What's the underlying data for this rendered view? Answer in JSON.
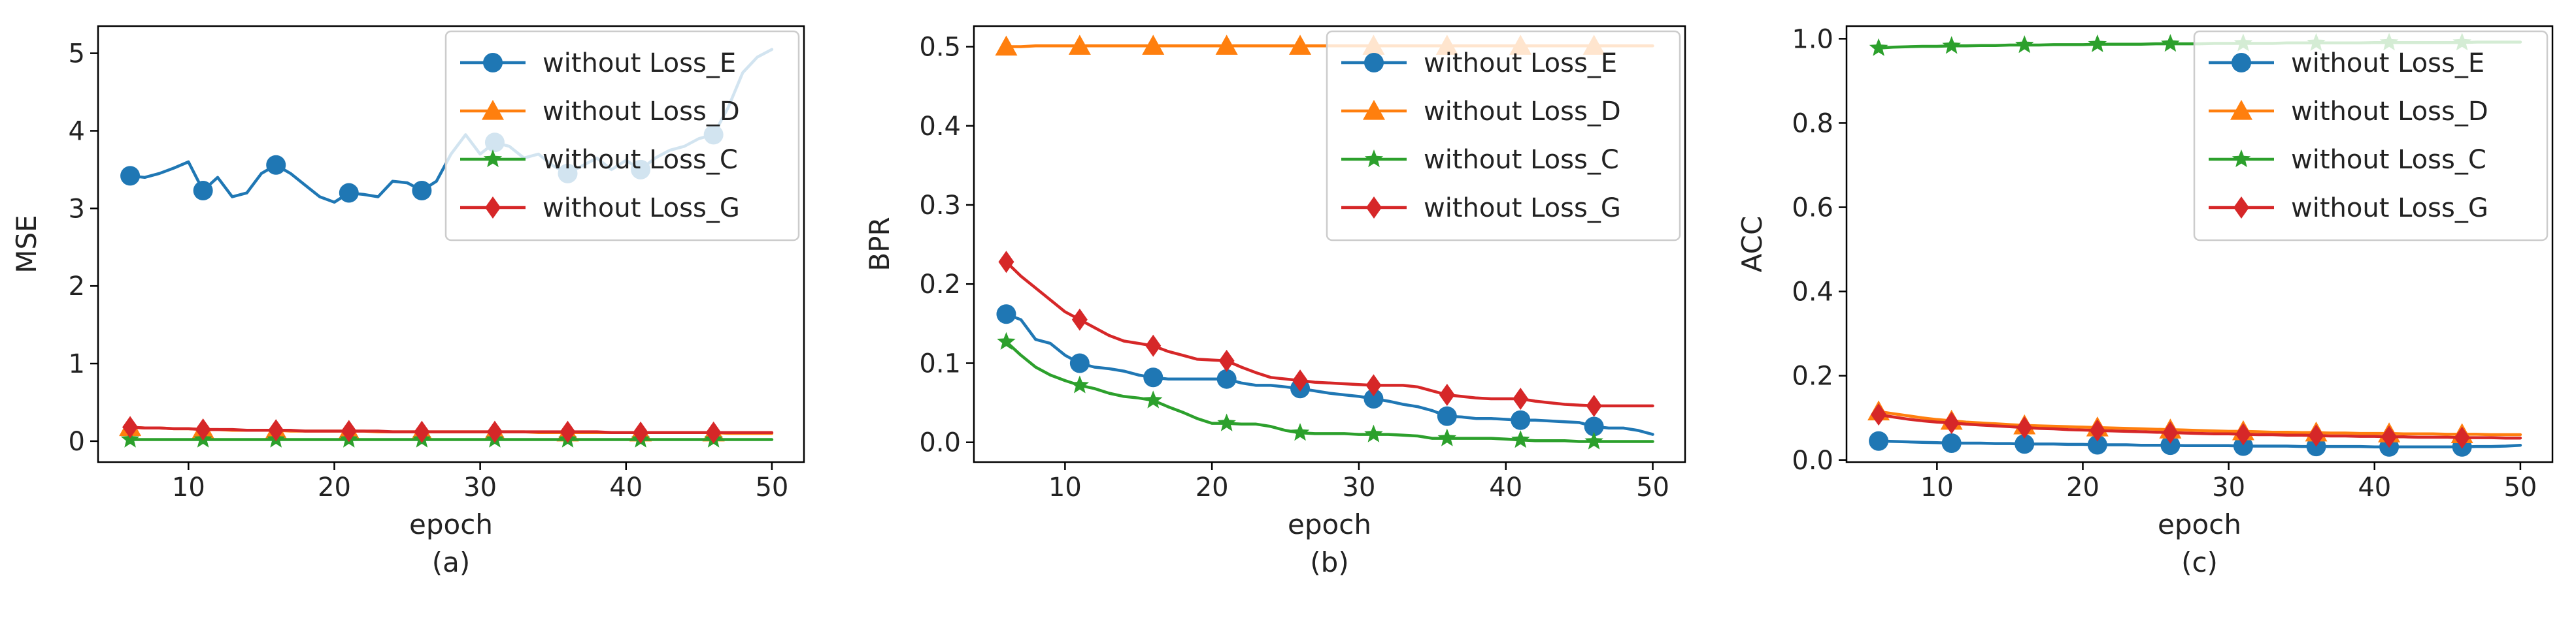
{
  "chart_data": [
    {
      "type": "line",
      "caption": "(a)",
      "xlabel": "epoch",
      "ylabel": "MSE",
      "xlim": [
        3.8,
        52.2
      ],
      "ylim": [
        -0.27,
        5.35
      ],
      "xticks": [
        10,
        20,
        30,
        40,
        50
      ],
      "yticks": [
        0,
        1,
        2,
        3,
        4,
        5
      ],
      "ytick_labels": [
        "0",
        "1",
        "2",
        "3",
        "4",
        "5"
      ],
      "legend_position": "top-right",
      "x": [
        6,
        7,
        8,
        9,
        10,
        11,
        12,
        13,
        14,
        15,
        16,
        17,
        18,
        19,
        20,
        21,
        22,
        23,
        24,
        25,
        26,
        27,
        28,
        29,
        30,
        31,
        32,
        33,
        34,
        35,
        36,
        37,
        38,
        39,
        40,
        41,
        42,
        43,
        44,
        45,
        46,
        47,
        48,
        49,
        50
      ],
      "marker_every": 5,
      "series": [
        {
          "name": "without Loss_E",
          "color": "#1f77b4",
          "marker": "circle",
          "values": [
            3.42,
            3.4,
            3.45,
            3.52,
            3.6,
            3.23,
            3.4,
            3.15,
            3.2,
            3.45,
            3.56,
            3.45,
            3.3,
            3.15,
            3.08,
            3.2,
            3.18,
            3.15,
            3.35,
            3.33,
            3.23,
            3.35,
            3.7,
            3.95,
            3.7,
            3.85,
            3.8,
            3.65,
            3.7,
            3.55,
            3.45,
            3.55,
            3.65,
            3.5,
            3.62,
            3.5,
            3.65,
            3.75,
            3.8,
            3.9,
            3.95,
            4.3,
            4.75,
            4.95,
            5.05
          ]
        },
        {
          "name": "without Loss_D",
          "color": "#ff7f0e",
          "marker": "triangle",
          "values": [
            0.18,
            0.17,
            0.17,
            0.16,
            0.16,
            0.15,
            0.15,
            0.14,
            0.14,
            0.14,
            0.14,
            0.13,
            0.13,
            0.13,
            0.13,
            0.13,
            0.13,
            0.12,
            0.12,
            0.12,
            0.12,
            0.12,
            0.12,
            0.12,
            0.12,
            0.12,
            0.12,
            0.12,
            0.11,
            0.11,
            0.11,
            0.11,
            0.11,
            0.11,
            0.11,
            0.11,
            0.11,
            0.11,
            0.11,
            0.11,
            0.11,
            0.1,
            0.1,
            0.1,
            0.1
          ]
        },
        {
          "name": "without Loss_C",
          "color": "#2ca02c",
          "marker": "star",
          "values": [
            0.02,
            0.02,
            0.02,
            0.02,
            0.02,
            0.02,
            0.02,
            0.02,
            0.02,
            0.02,
            0.02,
            0.02,
            0.02,
            0.02,
            0.02,
            0.02,
            0.02,
            0.02,
            0.02,
            0.02,
            0.02,
            0.02,
            0.02,
            0.02,
            0.02,
            0.02,
            0.02,
            0.02,
            0.02,
            0.02,
            0.02,
            0.02,
            0.02,
            0.02,
            0.02,
            0.02,
            0.02,
            0.02,
            0.02,
            0.02,
            0.02,
            0.02,
            0.02,
            0.02,
            0.02
          ]
        },
        {
          "name": "without Loss_G",
          "color": "#d62728",
          "marker": "diamond",
          "values": [
            0.18,
            0.17,
            0.17,
            0.16,
            0.16,
            0.15,
            0.15,
            0.15,
            0.14,
            0.14,
            0.14,
            0.14,
            0.13,
            0.13,
            0.13,
            0.13,
            0.13,
            0.13,
            0.12,
            0.12,
            0.12,
            0.12,
            0.12,
            0.12,
            0.12,
            0.12,
            0.12,
            0.12,
            0.12,
            0.12,
            0.12,
            0.12,
            0.12,
            0.11,
            0.11,
            0.11,
            0.11,
            0.11,
            0.11,
            0.11,
            0.11,
            0.11,
            0.11,
            0.11,
            0.11
          ]
        }
      ]
    },
    {
      "type": "line",
      "caption": "(b)",
      "xlabel": "epoch",
      "ylabel": "BPR",
      "xlim": [
        3.8,
        52.2
      ],
      "ylim": [
        -0.025,
        0.526
      ],
      "xticks": [
        10,
        20,
        30,
        40,
        50
      ],
      "yticks": [
        0.0,
        0.1,
        0.2,
        0.3,
        0.4,
        0.5
      ],
      "ytick_labels": [
        "0.0",
        "0.1",
        "0.2",
        "0.3",
        "0.4",
        "0.5"
      ],
      "legend_position": "top-right",
      "x": [
        6,
        7,
        8,
        9,
        10,
        11,
        12,
        13,
        14,
        15,
        16,
        17,
        18,
        19,
        20,
        21,
        22,
        23,
        24,
        25,
        26,
        27,
        28,
        29,
        30,
        31,
        32,
        33,
        34,
        35,
        36,
        37,
        38,
        39,
        40,
        41,
        42,
        43,
        44,
        45,
        46,
        47,
        48,
        49,
        50
      ],
      "marker_every": 5,
      "series": [
        {
          "name": "without Loss_E",
          "color": "#1f77b4",
          "marker": "circle",
          "values": [
            0.162,
            0.155,
            0.13,
            0.125,
            0.11,
            0.1,
            0.095,
            0.093,
            0.09,
            0.085,
            0.082,
            0.08,
            0.08,
            0.08,
            0.08,
            0.08,
            0.075,
            0.072,
            0.072,
            0.07,
            0.068,
            0.065,
            0.062,
            0.06,
            0.058,
            0.055,
            0.052,
            0.048,
            0.045,
            0.04,
            0.033,
            0.032,
            0.03,
            0.03,
            0.029,
            0.028,
            0.028,
            0.027,
            0.026,
            0.025,
            0.02,
            0.018,
            0.018,
            0.015,
            0.01
          ]
        },
        {
          "name": "without Loss_D",
          "color": "#ff7f0e",
          "marker": "triangle",
          "values": [
            0.5,
            0.5,
            0.501,
            0.501,
            0.501,
            0.501,
            0.501,
            0.501,
            0.501,
            0.501,
            0.501,
            0.501,
            0.501,
            0.501,
            0.501,
            0.501,
            0.501,
            0.501,
            0.501,
            0.501,
            0.501,
            0.501,
            0.501,
            0.501,
            0.501,
            0.501,
            0.501,
            0.501,
            0.501,
            0.501,
            0.501,
            0.501,
            0.501,
            0.501,
            0.501,
            0.501,
            0.501,
            0.501,
            0.501,
            0.501,
            0.501,
            0.501,
            0.501,
            0.501,
            0.501
          ]
        },
        {
          "name": "without Loss_C",
          "color": "#2ca02c",
          "marker": "star",
          "values": [
            0.127,
            0.11,
            0.095,
            0.085,
            0.078,
            0.072,
            0.068,
            0.062,
            0.058,
            0.056,
            0.053,
            0.045,
            0.038,
            0.03,
            0.024,
            0.024,
            0.023,
            0.023,
            0.02,
            0.015,
            0.012,
            0.011,
            0.011,
            0.011,
            0.01,
            0.01,
            0.01,
            0.009,
            0.008,
            0.005,
            0.005,
            0.005,
            0.005,
            0.005,
            0.004,
            0.003,
            0.002,
            0.002,
            0.002,
            0.001,
            0.001,
            0.001,
            0.001,
            0.001,
            0.001
          ]
        },
        {
          "name": "without Loss_G",
          "color": "#d62728",
          "marker": "diamond",
          "values": [
            0.228,
            0.21,
            0.195,
            0.18,
            0.165,
            0.155,
            0.145,
            0.135,
            0.128,
            0.125,
            0.122,
            0.115,
            0.11,
            0.105,
            0.104,
            0.103,
            0.095,
            0.088,
            0.082,
            0.08,
            0.078,
            0.076,
            0.075,
            0.074,
            0.073,
            0.072,
            0.072,
            0.072,
            0.07,
            0.065,
            0.06,
            0.058,
            0.056,
            0.055,
            0.055,
            0.055,
            0.052,
            0.05,
            0.048,
            0.047,
            0.046,
            0.046,
            0.046,
            0.046,
            0.046
          ]
        }
      ]
    },
    {
      "type": "line",
      "caption": "(c)",
      "xlabel": "epoch",
      "ylabel": "ACC",
      "xlim": [
        3.8,
        52.2
      ],
      "ylim": [
        -0.005,
        1.03
      ],
      "xticks": [
        10,
        20,
        30,
        40,
        50
      ],
      "yticks": [
        0.0,
        0.2,
        0.4,
        0.6,
        0.8,
        1.0
      ],
      "ytick_labels": [
        "0.0",
        "0.2",
        "0.4",
        "0.6",
        "0.8",
        "1.0"
      ],
      "legend_position": "top-right",
      "x": [
        6,
        7,
        8,
        9,
        10,
        11,
        12,
        13,
        14,
        15,
        16,
        17,
        18,
        19,
        20,
        21,
        22,
        23,
        24,
        25,
        26,
        27,
        28,
        29,
        30,
        31,
        32,
        33,
        34,
        35,
        36,
        37,
        38,
        39,
        40,
        41,
        42,
        43,
        44,
        45,
        46,
        47,
        48,
        49,
        50
      ],
      "marker_every": 5,
      "series": [
        {
          "name": "without Loss_E",
          "color": "#1f77b4",
          "marker": "circle",
          "values": [
            0.045,
            0.044,
            0.043,
            0.042,
            0.041,
            0.04,
            0.04,
            0.04,
            0.039,
            0.039,
            0.038,
            0.038,
            0.038,
            0.037,
            0.037,
            0.036,
            0.036,
            0.036,
            0.035,
            0.035,
            0.035,
            0.034,
            0.034,
            0.034,
            0.034,
            0.033,
            0.033,
            0.033,
            0.033,
            0.032,
            0.032,
            0.032,
            0.032,
            0.032,
            0.031,
            0.031,
            0.031,
            0.031,
            0.031,
            0.031,
            0.031,
            0.032,
            0.032,
            0.033,
            0.035
          ]
        },
        {
          "name": "without Loss_D",
          "color": "#ff7f0e",
          "marker": "triangle",
          "values": [
            0.115,
            0.11,
            0.105,
            0.1,
            0.096,
            0.093,
            0.09,
            0.088,
            0.086,
            0.084,
            0.082,
            0.081,
            0.08,
            0.079,
            0.078,
            0.077,
            0.076,
            0.075,
            0.074,
            0.073,
            0.072,
            0.071,
            0.07,
            0.069,
            0.068,
            0.068,
            0.067,
            0.066,
            0.066,
            0.065,
            0.065,
            0.064,
            0.064,
            0.063,
            0.063,
            0.063,
            0.062,
            0.062,
            0.062,
            0.061,
            0.061,
            0.061,
            0.06,
            0.06,
            0.06
          ]
        },
        {
          "name": "without Loss_C",
          "color": "#2ca02c",
          "marker": "star",
          "values": [
            0.978,
            0.98,
            0.981,
            0.982,
            0.982,
            0.983,
            0.983,
            0.984,
            0.984,
            0.985,
            0.985,
            0.985,
            0.986,
            0.986,
            0.986,
            0.987,
            0.987,
            0.987,
            0.987,
            0.988,
            0.988,
            0.988,
            0.988,
            0.989,
            0.989,
            0.989,
            0.989,
            0.989,
            0.99,
            0.99,
            0.99,
            0.99,
            0.99,
            0.99,
            0.991,
            0.991,
            0.991,
            0.991,
            0.991,
            0.991,
            0.991,
            0.992,
            0.992,
            0.992,
            0.992
          ]
        },
        {
          "name": "without Loss_G",
          "color": "#d62728",
          "marker": "diamond",
          "values": [
            0.108,
            0.102,
            0.097,
            0.093,
            0.09,
            0.088,
            0.085,
            0.083,
            0.081,
            0.079,
            0.077,
            0.075,
            0.074,
            0.072,
            0.071,
            0.07,
            0.069,
            0.068,
            0.067,
            0.066,
            0.065,
            0.064,
            0.063,
            0.062,
            0.062,
            0.061,
            0.06,
            0.06,
            0.059,
            0.059,
            0.058,
            0.057,
            0.057,
            0.056,
            0.056,
            0.055,
            0.055,
            0.054,
            0.054,
            0.054,
            0.053,
            0.053,
            0.053,
            0.052,
            0.052
          ]
        }
      ]
    }
  ]
}
